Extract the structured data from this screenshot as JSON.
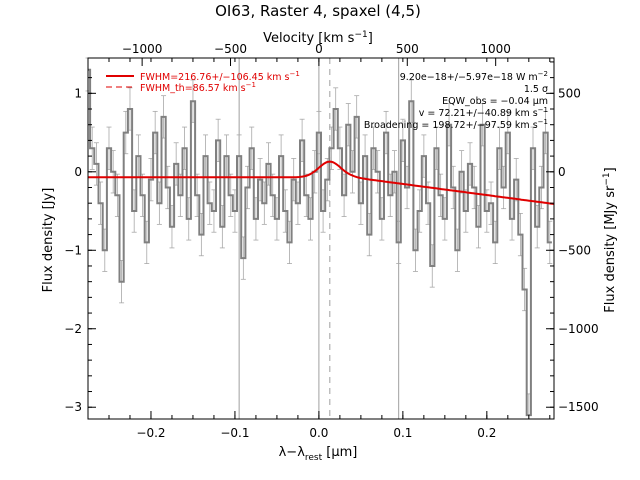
{
  "chart_data": {
    "type": "line",
    "title": "OI63, Raster 4, spaxel (4,5)",
    "xlabel": "λ−λ_rest [μm]",
    "xlabel_main": "λ−λ",
    "xlabel_sub": "rest",
    "xlabel_unit": " [μm]",
    "ylabel": "Flux density [Jy]",
    "top_xlabel": "Velocity [km s⁻¹]",
    "top_xlabel_main": "Velocity [km s",
    "top_xlabel_sup": "−1",
    "top_xlabel_end": "]",
    "right_ylabel": "Flux density [MJy sr⁻¹]",
    "right_ylabel_main": "Flux density [MJy sr",
    "right_ylabel_sup": "−1",
    "right_ylabel_end": "]",
    "xlim": [
      -0.275,
      0.28
    ],
    "ylim": [
      -3.15,
      1.45
    ],
    "x_ticks": [
      -0.2,
      -0.1,
      0.0,
      0.1,
      0.2
    ],
    "x_tick_labels": [
      "−0.2",
      "−0.1",
      "0.0",
      "0.1",
      "0.2"
    ],
    "y_ticks": [
      -3,
      -2,
      -1,
      0,
      1
    ],
    "y_tick_labels": [
      "−3",
      "−2",
      "−1",
      "0",
      "1"
    ],
    "top_ticks": [
      -1000,
      -500,
      0,
      500,
      1000
    ],
    "top_tick_labels": [
      "−1000",
      "−500",
      "0",
      "500",
      "1000"
    ],
    "right_ticks": [
      -1500,
      -1000,
      -500,
      0,
      500
    ],
    "right_tick_labels": [
      "−1500",
      "−1000",
      "−500",
      "0",
      "500"
    ],
    "velocity_per_micron": 4750,
    "right_scale_per_jy": 500,
    "vertical_lines_solid": [
      -0.095,
      0.0,
      0.095
    ],
    "vertical_line_dashed": 0.013,
    "legend": {
      "placement": "top-left",
      "entries": [
        {
          "label": "FWHM=216.76+/−106.45 km s",
          "sup": "−1",
          "style": "solid"
        },
        {
          "label": "FWHM_th=86.57 km s",
          "sup": "−1",
          "style": "dashed"
        }
      ]
    },
    "annotations": [
      {
        "text": "9.20e−18+/−5.97e−18 W m",
        "sup": "−2"
      },
      {
        "text": "1.5 σ",
        "sup": ""
      },
      {
        "text": "EQW_obs = −0.04 μm",
        "sup": ""
      },
      {
        "text": "v = 72.21+/−40.89 km s",
        "sup": "−1"
      },
      {
        "text": "Broadening = 198.72+/−97.59 km s",
        "sup": "−1"
      }
    ],
    "colors": {
      "data": "#808080",
      "error": "#a8a8a8",
      "fit": "#e00000",
      "guide": "#a0a0a0"
    },
    "fit": {
      "baseline_flat_until": 0.04,
      "baseline_level": -0.07,
      "baseline_end": [
        0.28,
        -0.41
      ],
      "gaussian_center": 0.013,
      "gaussian_amplitude": 0.2,
      "gaussian_sigma": 0.013
    },
    "series": [
      {
        "type": "step",
        "x": [
          -0.275,
          -0.27,
          -0.265,
          -0.26,
          -0.255,
          -0.25,
          -0.245,
          -0.24,
          -0.235,
          -0.23,
          -0.225,
          -0.22,
          -0.215,
          -0.21,
          -0.205,
          -0.2,
          -0.195,
          -0.19,
          -0.185,
          -0.18,
          -0.175,
          -0.17,
          -0.165,
          -0.16,
          -0.155,
          -0.15,
          -0.145,
          -0.14,
          -0.135,
          -0.13,
          -0.125,
          -0.12,
          -0.115,
          -0.11,
          -0.105,
          -0.1,
          -0.095,
          -0.09,
          -0.085,
          -0.08,
          -0.075,
          -0.07,
          -0.065,
          -0.06,
          -0.055,
          -0.05,
          -0.045,
          -0.04,
          -0.035,
          -0.03,
          -0.025,
          -0.02,
          -0.015,
          -0.01,
          -0.005,
          0.0,
          0.005,
          0.01,
          0.015,
          0.02,
          0.025,
          0.03,
          0.035,
          0.04,
          0.045,
          0.05,
          0.055,
          0.06,
          0.065,
          0.07,
          0.075,
          0.08,
          0.085,
          0.09,
          0.095,
          0.1,
          0.105,
          0.11,
          0.115,
          0.12,
          0.125,
          0.13,
          0.135,
          0.14,
          0.145,
          0.15,
          0.155,
          0.16,
          0.165,
          0.17,
          0.175,
          0.18,
          0.185,
          0.19,
          0.195,
          0.2,
          0.205,
          0.21,
          0.215,
          0.22,
          0.225,
          0.23,
          0.235,
          0.24,
          0.245,
          0.25,
          0.255,
          0.26,
          0.265,
          0.27,
          0.275
        ],
        "y": [
          1.3,
          0.3,
          0.1,
          -0.4,
          -1.0,
          0.3,
          0.0,
          -0.3,
          -1.4,
          0.5,
          0.8,
          -0.5,
          0.2,
          -0.3,
          -0.9,
          -0.1,
          0.5,
          -0.4,
          0.7,
          -0.2,
          -0.7,
          0.1,
          -0.3,
          0.3,
          -0.6,
          0.9,
          -0.3,
          -0.8,
          0.2,
          -0.4,
          -0.5,
          0.4,
          -0.7,
          0.2,
          -0.3,
          -0.5,
          0.2,
          -1.1,
          -0.2,
          0.3,
          -0.6,
          -0.1,
          -0.4,
          0.1,
          -0.3,
          -0.6,
          0.2,
          -0.5,
          -0.9,
          -0.1,
          -0.4,
          0.4,
          -0.3,
          -0.6,
          0.0,
          0.5,
          -0.5,
          -0.1,
          0.3,
          0.8,
          0.3,
          -0.3,
          0.6,
          0.0,
          0.7,
          -0.4,
          0.2,
          -0.8,
          0.3,
          0.0,
          -0.6,
          0.5,
          -0.3,
          0.0,
          -0.9,
          0.4,
          -0.2,
          0.9,
          -1.0,
          -0.5,
          0.2,
          -0.4,
          -1.2,
          0.3,
          -0.3,
          -0.6,
          0.6,
          -0.2,
          -1.0,
          0.0,
          -0.5,
          0.1,
          -0.2,
          -0.7,
          0.6,
          -0.5,
          -0.4,
          -0.9,
          0.3,
          -0.2,
          0.5,
          -0.6,
          -0.1,
          -0.8,
          -1.5,
          -3.1,
          0.3,
          -0.7,
          -0.2,
          0.5,
          -0.9
        ]
      }
    ],
    "error_bar": 0.27
  }
}
